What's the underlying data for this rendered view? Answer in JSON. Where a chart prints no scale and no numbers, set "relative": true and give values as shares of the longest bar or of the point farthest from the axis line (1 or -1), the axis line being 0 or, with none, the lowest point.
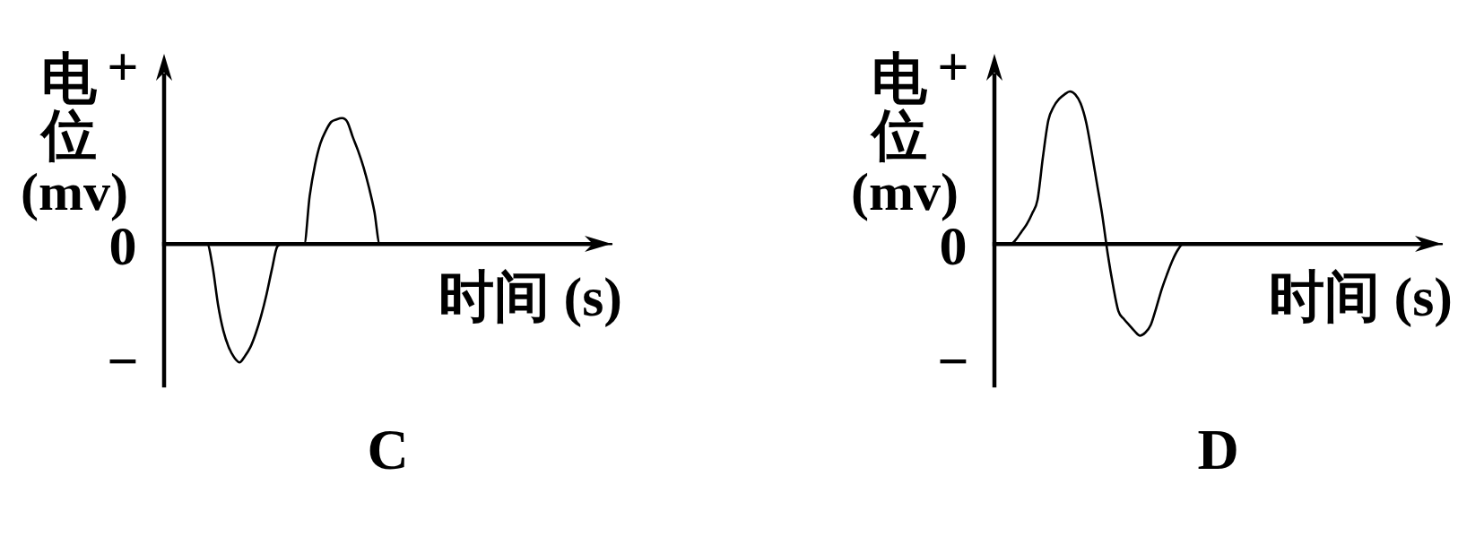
{
  "chart_data": [
    {
      "type": "line",
      "title": "C",
      "xlabel": "时间 (s)",
      "ylabel": "电位 (mv)",
      "relative": true,
      "marker": "none",
      "line_style": "solid",
      "color": "#000000",
      "categories": [
        null,
        null,
        null,
        null,
        null,
        null,
        null,
        null,
        null,
        null,
        null,
        null,
        null,
        null,
        null,
        null,
        null,
        null,
        null,
        null,
        null,
        null,
        null,
        null,
        null,
        null,
        null,
        null,
        null,
        null,
        null,
        null,
        null,
        null,
        null,
        null,
        null,
        null,
        null,
        null,
        null,
        null,
        null,
        null,
        null,
        null,
        null,
        null,
        null,
        null,
        null,
        null,
        null,
        null,
        null,
        null,
        null,
        null,
        null,
        null,
        null,
        null,
        null,
        null,
        null,
        null,
        null,
        null,
        null,
        null,
        null,
        null,
        null,
        null,
        null,
        null,
        null,
        null,
        null,
        null,
        null,
        null,
        null,
        null
      ],
      "values": [
        0,
        0,
        0,
        0,
        0,
        0,
        0,
        0,
        0,
        -0.18,
        -0.48,
        -0.69,
        -0.82,
        -0.9,
        -0.94,
        -0.89,
        -0.82,
        -0.71,
        -0.57,
        -0.4,
        -0.2,
        -0.02,
        0,
        0,
        0,
        0,
        0,
        0.38,
        0.63,
        0.8,
        0.9,
        0.97,
        0.99,
        1,
        0.97,
        0.85,
        0.74,
        0.61,
        0.45,
        0.26,
        0,
        0,
        0,
        0,
        0,
        0,
        0,
        0,
        0,
        0,
        0,
        0,
        0,
        0,
        0,
        0,
        0,
        0,
        0,
        0,
        0,
        0,
        0,
        0,
        0,
        0,
        0,
        0,
        0,
        0,
        0,
        0,
        0,
        0,
        0,
        0,
        0,
        0,
        0,
        0,
        0,
        0,
        0,
        0
      ],
      "annotations": [
        "+",
        "0",
        "−"
      ]
    },
    {
      "type": "line",
      "title": "D",
      "xlabel": "时间 (s)",
      "ylabel": "电位 (mv)",
      "relative": true,
      "marker": "none",
      "line_style": "solid",
      "color": "#000000",
      "categories": [
        null,
        null,
        null,
        null,
        null,
        null,
        null,
        null,
        null,
        null,
        null,
        null,
        null,
        null,
        null,
        null,
        null,
        null,
        null,
        null,
        null,
        null,
        null,
        null,
        null,
        null,
        null,
        null,
        null,
        null,
        null,
        null,
        null,
        null,
        null,
        null,
        null,
        null,
        null,
        null,
        null,
        null,
        null,
        null,
        null,
        null,
        null,
        null,
        null,
        null,
        null,
        null,
        null,
        null,
        null,
        null,
        null,
        null,
        null,
        null,
        null,
        null,
        null,
        null,
        null,
        null,
        null,
        null,
        null,
        null,
        null,
        null,
        null,
        null,
        null,
        null,
        null,
        null,
        null,
        null,
        null,
        null,
        null,
        null
      ],
      "values": [
        0,
        0,
        0,
        0,
        0.03,
        0.08,
        0.13,
        0.2,
        0.29,
        0.57,
        0.81,
        0.9,
        0.95,
        0.98,
        1,
        0.98,
        0.92,
        0.8,
        0.61,
        0.4,
        0.19,
        -0.06,
        -0.27,
        -0.44,
        -0.49,
        -0.53,
        -0.57,
        -0.6,
        -0.58,
        -0.53,
        -0.42,
        -0.3,
        -0.2,
        -0.11,
        -0.04,
        0,
        0,
        0,
        0,
        0,
        0,
        0,
        0,
        0,
        0,
        0,
        0,
        0,
        0,
        0,
        0,
        0,
        0,
        0,
        0,
        0,
        0,
        0,
        0,
        0,
        0,
        0,
        0,
        0,
        0,
        0,
        0,
        0,
        0,
        0,
        0,
        0,
        0,
        0,
        0,
        0,
        0,
        0,
        0,
        0,
        0,
        0,
        0,
        0
      ],
      "annotations": [
        "+",
        "0",
        "−"
      ]
    }
  ]
}
